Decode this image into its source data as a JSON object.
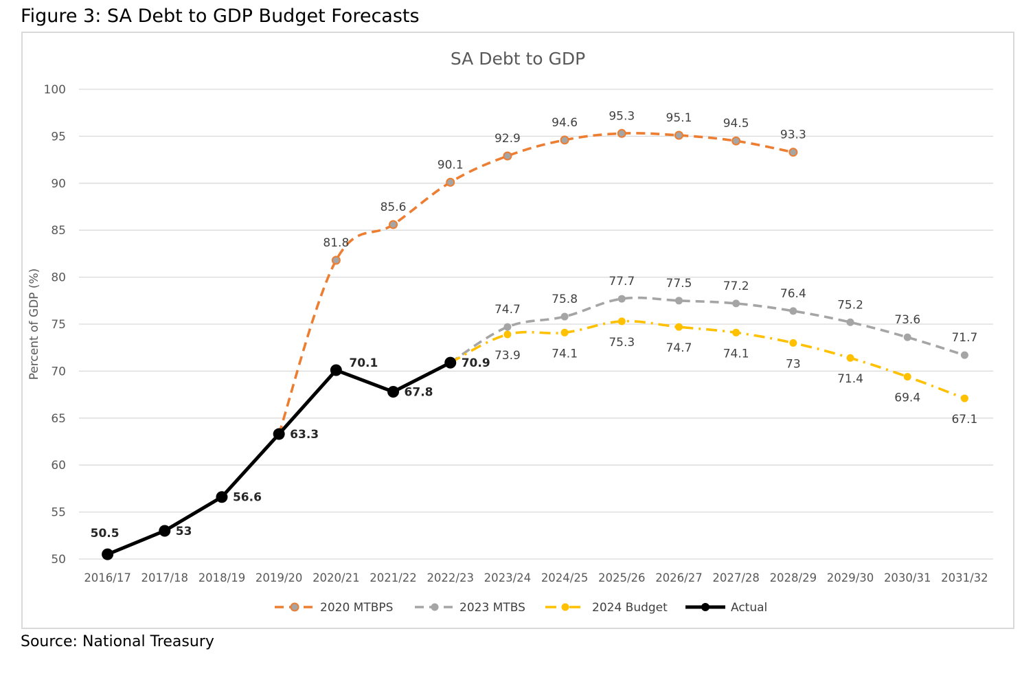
{
  "figure_title": "Figure 3: SA Debt to GDP Budget Forecasts",
  "source": "Source: National Treasury",
  "chart_data": {
    "type": "line",
    "title": "SA Debt to GDP",
    "xlabel": "",
    "ylabel": "Percent of GDP (%)",
    "ylim": [
      50,
      100
    ],
    "yticks": [
      50,
      55,
      60,
      65,
      70,
      75,
      80,
      85,
      90,
      95,
      100
    ],
    "grid": true,
    "legend_position": "bottom",
    "categories": [
      "2016/17",
      "2017/18",
      "2018/19",
      "2019/20",
      "2020/21",
      "2021/22",
      "2022/23",
      "2023/24",
      "2024/25",
      "2025/26",
      "2026/27",
      "2027/28",
      "2028/29",
      "2029/30",
      "2030/31",
      "2031/32"
    ],
    "series": [
      {
        "name": "2020 MTBPS",
        "color": "#ED7D31",
        "style": "dashed",
        "values": [
          null,
          null,
          null,
          63.3,
          81.8,
          85.6,
          90.1,
          92.9,
          94.6,
          95.3,
          95.1,
          94.5,
          93.3,
          null,
          null,
          null
        ],
        "labeled": [
          false,
          false,
          false,
          false,
          true,
          true,
          true,
          true,
          true,
          true,
          true,
          true,
          true,
          false,
          false,
          false
        ]
      },
      {
        "name": "2023 MTBS",
        "color": "#A5A5A5",
        "style": "dashed",
        "values": [
          null,
          null,
          null,
          null,
          null,
          null,
          70.9,
          74.7,
          75.8,
          77.7,
          77.5,
          77.2,
          76.4,
          75.2,
          73.6,
          71.7
        ],
        "labeled": [
          false,
          false,
          false,
          false,
          false,
          false,
          false,
          true,
          true,
          true,
          true,
          true,
          true,
          true,
          true,
          true
        ]
      },
      {
        "name": "2024 Budget",
        "color": "#FFC000",
        "style": "dashdot",
        "values": [
          null,
          null,
          null,
          null,
          null,
          null,
          70.9,
          73.9,
          74.1,
          75.3,
          74.7,
          74.1,
          73,
          71.4,
          69.4,
          67.1
        ],
        "labeled": [
          false,
          false,
          false,
          false,
          false,
          false,
          false,
          true,
          true,
          true,
          true,
          true,
          true,
          true,
          true,
          true
        ]
      },
      {
        "name": "Actual",
        "color": "#000000",
        "style": "solid",
        "values": [
          50.5,
          53,
          56.6,
          63.3,
          70.1,
          67.8,
          70.9,
          null,
          null,
          null,
          null,
          null,
          null,
          null,
          null,
          null
        ],
        "labeled": [
          true,
          true,
          true,
          true,
          true,
          true,
          true,
          false,
          false,
          false,
          false,
          false,
          false,
          false,
          false,
          false
        ]
      }
    ]
  }
}
